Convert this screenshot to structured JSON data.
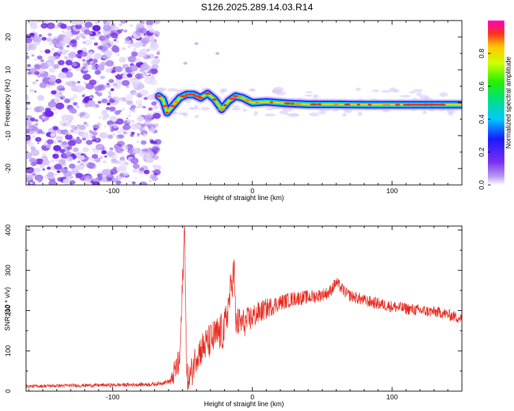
{
  "title": "S126.2025.289.14.03.R14",
  "chart_data": [
    {
      "type": "heatmap",
      "name": "spectrogram",
      "xlabel": "Height of straight line (km)",
      "ylabel": "Frequency (Hz)",
      "xlim": [
        -162,
        150
      ],
      "ylim": [
        -25,
        25
      ],
      "xticks": [
        -100,
        0,
        100
      ],
      "yticks": [
        -20,
        -10,
        0,
        10,
        20
      ],
      "colorbar": {
        "label": "Normalized spectral amplitude",
        "range": [
          0,
          1
        ],
        "ticks": [
          0.0,
          0.2,
          0.4,
          0.6,
          0.8
        ]
      },
      "noise_region": {
        "x_from": -162,
        "x_to": -70
      },
      "ridge": [
        {
          "x": -67,
          "y": 2.0
        },
        {
          "x": -64,
          "y": 1.0
        },
        {
          "x": -61,
          "y": -3.0
        },
        {
          "x": -57,
          "y": -1.0
        },
        {
          "x": -52,
          "y": 1.5
        },
        {
          "x": -47,
          "y": 2.5
        },
        {
          "x": -42,
          "y": 2.5
        },
        {
          "x": -37,
          "y": 1.5
        },
        {
          "x": -32,
          "y": 2.8
        },
        {
          "x": -27,
          "y": 1.0
        },
        {
          "x": -22,
          "y": -2.0
        },
        {
          "x": -17,
          "y": 0.5
        },
        {
          "x": -12,
          "y": 2.0
        },
        {
          "x": -7,
          "y": 1.5
        },
        {
          "x": 0,
          "y": 0.0
        },
        {
          "x": 10,
          "y": 0.3
        },
        {
          "x": 25,
          "y": -0.2
        },
        {
          "x": 40,
          "y": -0.5
        },
        {
          "x": 60,
          "y": -0.5
        },
        {
          "x": 80,
          "y": -0.6
        },
        {
          "x": 100,
          "y": -0.6
        },
        {
          "x": 120,
          "y": -0.6
        },
        {
          "x": 140,
          "y": -0.6
        },
        {
          "x": 150,
          "y": -0.6
        }
      ]
    },
    {
      "type": "line",
      "name": "snr",
      "xlabel": "Height of straight line (km)",
      "ylabel": "SNR (10 * v/v)",
      "xlim": [
        -162,
        150
      ],
      "ylim": [
        0,
        410
      ],
      "xticks": [
        -100,
        0,
        100
      ],
      "yticks": [
        0,
        100,
        200,
        300,
        400
      ],
      "color": "#e8281e",
      "trend": [
        {
          "x": -162,
          "y": 12
        },
        {
          "x": -130,
          "y": 14
        },
        {
          "x": -100,
          "y": 15
        },
        {
          "x": -70,
          "y": 17
        },
        {
          "x": -58,
          "y": 25
        },
        {
          "x": -55,
          "y": 55
        },
        {
          "x": -52,
          "y": 70
        },
        {
          "x": -48.5,
          "y": 410
        },
        {
          "x": -47,
          "y": 30
        },
        {
          "x": -44,
          "y": 40
        },
        {
          "x": -40,
          "y": 90
        },
        {
          "x": -35,
          "y": 110
        },
        {
          "x": -30,
          "y": 125
        },
        {
          "x": -25,
          "y": 140
        },
        {
          "x": -20,
          "y": 150
        },
        {
          "x": -13,
          "y": 305
        },
        {
          "x": -12,
          "y": 170
        },
        {
          "x": -5,
          "y": 170
        },
        {
          "x": 0,
          "y": 185
        },
        {
          "x": 10,
          "y": 205
        },
        {
          "x": 20,
          "y": 220
        },
        {
          "x": 30,
          "y": 230
        },
        {
          "x": 45,
          "y": 235
        },
        {
          "x": 55,
          "y": 245
        },
        {
          "x": 60,
          "y": 270
        },
        {
          "x": 68,
          "y": 240
        },
        {
          "x": 80,
          "y": 225
        },
        {
          "x": 100,
          "y": 210
        },
        {
          "x": 120,
          "y": 200
        },
        {
          "x": 135,
          "y": 195
        },
        {
          "x": 150,
          "y": 180
        }
      ],
      "noise_amplitude": [
        {
          "x": -162,
          "y": 4
        },
        {
          "x": -60,
          "y": 5
        },
        {
          "x": -55,
          "y": 35
        },
        {
          "x": -40,
          "y": 40
        },
        {
          "x": -20,
          "y": 50
        },
        {
          "x": -5,
          "y": 35
        },
        {
          "x": 20,
          "y": 20
        },
        {
          "x": 60,
          "y": 15
        },
        {
          "x": 100,
          "y": 15
        },
        {
          "x": 150,
          "y": 14
        }
      ]
    }
  ]
}
